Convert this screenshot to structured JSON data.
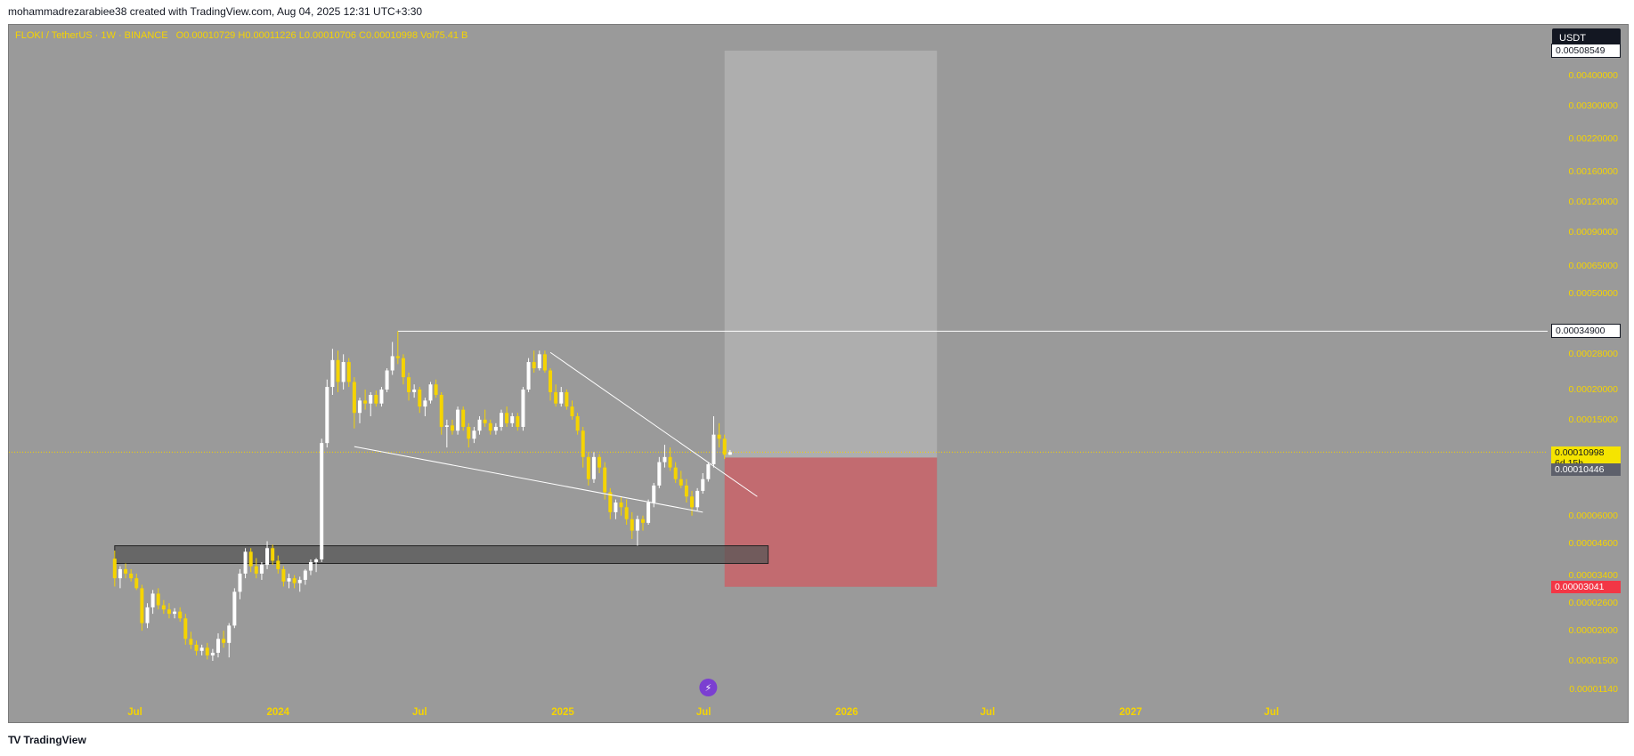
{
  "caption": "mohammadrezarabiee38 created with TradingView.com, Aug 04, 2025 12:31 UTC+3:30",
  "footer": {
    "brand": "TradingView"
  },
  "currency": "USDT",
  "legend": {
    "symbol": "FLOKI / TetherUS · 1W · BINANCE",
    "open_key": "O",
    "open": "0.00010729",
    "high_key": "H",
    "high": "0.00011226",
    "low_key": "L",
    "low": "0.00010706",
    "close_key": "C",
    "close": "0.00010998",
    "vol_key": "Vol",
    "vol": "75.41 B"
  },
  "price_labels": {
    "target": "0.00508549",
    "resistance": "0.00034900",
    "current": "0.00010998",
    "countdown": "6d 15h",
    "entry": "0.00010446",
    "stop": "0.00003041"
  },
  "colors": {
    "background": "#9a9a9a",
    "up_candle": "#ffffff",
    "down_candle": "#f5d400",
    "axis_text": "#f5d400",
    "target_zone": "#b0b0b0",
    "stop_zone": "#c4686e",
    "support_zone": "#555555",
    "stop_label": "#f23645"
  },
  "chart_data": {
    "type": "candlestick",
    "scale": "log",
    "ylim": [
      1.05e-05,
      0.0065
    ],
    "y_ticks": [
      "0.00400000",
      "0.00300000",
      "0.00220000",
      "0.00160000",
      "0.00120000",
      "0.00090000",
      "0.00065000",
      "0.00050000",
      "0.00028000",
      "0.00020000",
      "0.00015000",
      "0.00006000",
      "0.00004600",
      "0.00003400",
      "0.00002600",
      "0.00002000",
      "0.00001500",
      "0.00001140"
    ],
    "x_ticks": [
      "Jul",
      "2024",
      "Jul",
      "2025",
      "Jul",
      "2026",
      "Jul",
      "2027",
      "Jul"
    ],
    "x_tick_dates": [
      "2023-07-01",
      "2024-01-01",
      "2024-07-01",
      "2025-01-01",
      "2025-07-01",
      "2026-01-01",
      "2026-07-01",
      "2027-01-01",
      "2027-07-01"
    ],
    "xlim": [
      "2023-01-20",
      "2028-06-20"
    ],
    "candles": [
      [
        "2023-06-05",
        3.98e-05,
        4.3e-05,
        3.05e-05,
        3.3e-05
      ],
      [
        "2023-06-12",
        3.3e-05,
        3.7e-05,
        3e-05,
        3.6e-05
      ],
      [
        "2023-06-19",
        3.6e-05,
        3.8e-05,
        3.3e-05,
        3.45e-05
      ],
      [
        "2023-06-26",
        3.45e-05,
        3.6e-05,
        3.2e-05,
        3.3e-05
      ],
      [
        "2023-07-03",
        3.3e-05,
        3.45e-05,
        2.95e-05,
        3e-05
      ],
      [
        "2023-07-10",
        3e-05,
        3.1e-05,
        2e-05,
        2.15e-05
      ],
      [
        "2023-07-17",
        2.15e-05,
        2.6e-05,
        2.05e-05,
        2.5e-05
      ],
      [
        "2023-07-24",
        2.5e-05,
        2.95e-05,
        2.35e-05,
        2.85e-05
      ],
      [
        "2023-07-31",
        2.85e-05,
        3e-05,
        2.45e-05,
        2.55e-05
      ],
      [
        "2023-08-07",
        2.55e-05,
        2.68e-05,
        2.35e-05,
        2.45e-05
      ],
      [
        "2023-08-14",
        2.45e-05,
        2.6e-05,
        2.25e-05,
        2.35e-05
      ],
      [
        "2023-08-21",
        2.35e-05,
        2.48e-05,
        2.25e-05,
        2.4e-05
      ],
      [
        "2023-08-28",
        2.4e-05,
        2.5e-05,
        2.18e-05,
        2.25e-05
      ],
      [
        "2023-09-04",
        2.25e-05,
        2.35e-05,
        1.75e-05,
        1.85e-05
      ],
      [
        "2023-09-11",
        1.85e-05,
        1.98e-05,
        1.68e-05,
        1.75e-05
      ],
      [
        "2023-09-18",
        1.75e-05,
        1.82e-05,
        1.58e-05,
        1.65e-05
      ],
      [
        "2023-09-25",
        1.65e-05,
        1.75e-05,
        1.58e-05,
        1.7e-05
      ],
      [
        "2023-10-02",
        1.7e-05,
        1.78e-05,
        1.52e-05,
        1.58e-05
      ],
      [
        "2023-10-09",
        1.58e-05,
        1.68e-05,
        1.5e-05,
        1.62e-05
      ],
      [
        "2023-10-16",
        1.62e-05,
        1.95e-05,
        1.55e-05,
        1.85e-05
      ],
      [
        "2023-10-23",
        1.85e-05,
        2e-05,
        1.7e-05,
        1.78e-05
      ],
      [
        "2023-10-30",
        1.78e-05,
        2.15e-05,
        1.55e-05,
        2.1e-05
      ],
      [
        "2023-11-06",
        2.1e-05,
        3e-05,
        2.05e-05,
        2.9e-05
      ],
      [
        "2023-11-13",
        2.9e-05,
        3.6e-05,
        2.7e-05,
        3.45e-05
      ],
      [
        "2023-11-20",
        3.45e-05,
        4.4e-05,
        3.3e-05,
        4.25e-05
      ],
      [
        "2023-11-27",
        4.25e-05,
        4.4e-05,
        3.5e-05,
        3.7e-05
      ],
      [
        "2023-12-04",
        3.7e-05,
        4e-05,
        3.3e-05,
        3.45e-05
      ],
      [
        "2023-12-11",
        3.45e-05,
        3.85e-05,
        3.25e-05,
        3.75e-05
      ],
      [
        "2023-12-18",
        3.75e-05,
        4.7e-05,
        3.6e-05,
        4.4e-05
      ],
      [
        "2023-12-25",
        4.4e-05,
        4.55e-05,
        3.75e-05,
        3.9e-05
      ],
      [
        "2024-01-01",
        3.9e-05,
        4.1e-05,
        3.45e-05,
        3.6e-05
      ],
      [
        "2024-01-08",
        3.6e-05,
        3.7e-05,
        3.05e-05,
        3.2e-05
      ],
      [
        "2024-01-15",
        3.2e-05,
        3.45e-05,
        3e-05,
        3.3e-05
      ],
      [
        "2024-01-22",
        3.3e-05,
        3.4e-05,
        3e-05,
        3.15e-05
      ],
      [
        "2024-01-29",
        3.15e-05,
        3.35e-05,
        2.9e-05,
        3.25e-05
      ],
      [
        "2024-02-05",
        3.25e-05,
        3.6e-05,
        3.1e-05,
        3.55e-05
      ],
      [
        "2024-02-12",
        3.55e-05,
        3.95e-05,
        3.4e-05,
        3.85e-05
      ],
      [
        "2024-02-19",
        3.85e-05,
        4e-05,
        3.5e-05,
        3.95e-05
      ],
      [
        "2024-02-26",
        3.95e-05,
        0.000125,
        3.85e-05,
        0.00012
      ],
      [
        "2024-03-04",
        0.00012,
        0.00022,
        0.000115,
        0.000205
      ],
      [
        "2024-03-11",
        0.000205,
        0.000295,
        0.00019,
        0.000265
      ],
      [
        "2024-03-18",
        0.000265,
        0.00029,
        0.000195,
        0.000215
      ],
      [
        "2024-03-25",
        0.000215,
        0.00028,
        0.0002,
        0.00026
      ],
      [
        "2024-04-01",
        0.00026,
        0.00027,
        0.000205,
        0.000215
      ],
      [
        "2024-04-08",
        0.000215,
        0.000225,
        0.000138,
        0.00016
      ],
      [
        "2024-04-15",
        0.00016,
        0.000185,
        0.000145,
        0.00018
      ],
      [
        "2024-04-22",
        0.00018,
        0.0002,
        0.000165,
        0.000175
      ],
      [
        "2024-04-29",
        0.000175,
        0.000195,
        0.000155,
        0.00019
      ],
      [
        "2024-05-06",
        0.00019,
        0.000198,
        0.00017,
        0.000175
      ],
      [
        "2024-05-13",
        0.000175,
        0.000205,
        0.00017,
        0.0002
      ],
      [
        "2024-05-20",
        0.0002,
        0.000245,
        0.000195,
        0.00024
      ],
      [
        "2024-05-27",
        0.00024,
        0.000315,
        0.00023,
        0.000275
      ],
      [
        "2024-06-03",
        0.000275,
        0.000349,
        0.000255,
        0.00027
      ],
      [
        "2024-06-10",
        0.00027,
        0.00028,
        0.00021,
        0.000225
      ],
      [
        "2024-06-17",
        0.000225,
        0.000235,
        0.00018,
        0.000195
      ],
      [
        "2024-06-24",
        0.000195,
        0.00021,
        0.000185,
        0.0002
      ],
      [
        "2024-07-01",
        0.0002,
        0.000205,
        0.00016,
        0.00017
      ],
      [
        "2024-07-08",
        0.00017,
        0.000185,
        0.000155,
        0.00018
      ],
      [
        "2024-07-15",
        0.00018,
        0.000215,
        0.000175,
        0.00021
      ],
      [
        "2024-07-22",
        0.00021,
        0.00022,
        0.000185,
        0.00019
      ],
      [
        "2024-07-29",
        0.00019,
        0.000195,
        0.00013,
        0.00014
      ],
      [
        "2024-08-05",
        0.00014,
        0.00015,
        0.000115,
        0.000142
      ],
      [
        "2024-08-12",
        0.000142,
        0.00015,
        0.00013,
        0.000135
      ],
      [
        "2024-08-19",
        0.000135,
        0.00017,
        0.00013,
        0.000165
      ],
      [
        "2024-08-26",
        0.000165,
        0.00017,
        0.000135,
        0.00014
      ],
      [
        "2024-09-02",
        0.00014,
        0.000145,
        0.000115,
        0.000125
      ],
      [
        "2024-09-09",
        0.000125,
        0.00014,
        0.00012,
        0.000135
      ],
      [
        "2024-09-16",
        0.000135,
        0.000155,
        0.00013,
        0.00015
      ],
      [
        "2024-09-23",
        0.00015,
        0.000165,
        0.00014,
        0.000145
      ],
      [
        "2024-09-30",
        0.000145,
        0.00015,
        0.00013,
        0.000135
      ],
      [
        "2024-10-07",
        0.000135,
        0.000145,
        0.00013,
        0.00014
      ],
      [
        "2024-10-14",
        0.00014,
        0.000165,
        0.000135,
        0.00016
      ],
      [
        "2024-10-21",
        0.00016,
        0.00017,
        0.00014,
        0.000145
      ],
      [
        "2024-10-28",
        0.000145,
        0.00016,
        0.00014,
        0.000155
      ],
      [
        "2024-11-04",
        0.000155,
        0.00016,
        0.000135,
        0.00014
      ],
      [
        "2024-11-11",
        0.00014,
        0.000205,
        0.000135,
        0.0002
      ],
      [
        "2024-11-18",
        0.0002,
        0.00027,
        0.000195,
        0.00026
      ],
      [
        "2024-11-25",
        0.00026,
        0.00029,
        0.000235,
        0.000245
      ],
      [
        "2024-12-02",
        0.000245,
        0.00029,
        0.00024,
        0.00028
      ],
      [
        "2024-12-09",
        0.00028,
        0.00029,
        0.000235,
        0.00024
      ],
      [
        "2024-12-16",
        0.00024,
        0.000245,
        0.00018,
        0.000195
      ],
      [
        "2024-12-23",
        0.000195,
        0.00021,
        0.00017,
        0.000175
      ],
      [
        "2024-12-30",
        0.000175,
        0.000205,
        0.00017,
        0.000195
      ],
      [
        "2025-01-06",
        0.000195,
        0.0002,
        0.000165,
        0.00017
      ],
      [
        "2025-01-13",
        0.00017,
        0.00018,
        0.00015,
        0.000155
      ],
      [
        "2025-01-20",
        0.000155,
        0.00016,
        0.00013,
        0.000135
      ],
      [
        "2025-01-27",
        0.000135,
        0.00014,
        9.5e-05,
        0.000105
      ],
      [
        "2025-02-03",
        0.000105,
        0.00011,
        8e-05,
        8.5e-05
      ],
      [
        "2025-02-10",
        8.5e-05,
        0.00011,
        8.2e-05,
        0.000105
      ],
      [
        "2025-02-17",
        0.000105,
        0.000108,
        9e-05,
        9.5e-05
      ],
      [
        "2025-02-24",
        9.5e-05,
        0.0001,
        7e-05,
        7.5e-05
      ],
      [
        "2025-03-03",
        7.5e-05,
        7.8e-05,
        5.8e-05,
        6.2e-05
      ],
      [
        "2025-03-10",
        6.2e-05,
        7e-05,
        5.8e-05,
        6.8e-05
      ],
      [
        "2025-03-17",
        6.8e-05,
        7.2e-05,
        6e-05,
        6.5e-05
      ],
      [
        "2025-03-24",
        6.5e-05,
        7e-05,
        5.5e-05,
        5.8e-05
      ],
      [
        "2025-03-31",
        5.8e-05,
        6.2e-05,
        4.8e-05,
        5.2e-05
      ],
      [
        "2025-04-07",
        5.2e-05,
        6e-05,
        4.5e-05,
        5.8e-05
      ],
      [
        "2025-04-14",
        5.8e-05,
        6e-05,
        5.2e-05,
        5.6e-05
      ],
      [
        "2025-04-21",
        5.6e-05,
        7e-05,
        5.5e-05,
        6.8e-05
      ],
      [
        "2025-04-28",
        6.8e-05,
        8.2e-05,
        6.5e-05,
        8e-05
      ],
      [
        "2025-05-05",
        8e-05,
        0.000105,
        7.8e-05,
        0.0001
      ],
      [
        "2025-05-12",
        0.0001,
        0.000118,
        9.5e-05,
        0.000105
      ],
      [
        "2025-05-19",
        0.000105,
        0.000115,
        9.2e-05,
        9.5e-05
      ],
      [
        "2025-05-26",
        9.5e-05,
        0.0001,
        8.2e-05,
        8.5e-05
      ],
      [
        "2025-06-02",
        8.5e-05,
        9.2e-05,
        7.8e-05,
        8e-05
      ],
      [
        "2025-06-09",
        8e-05,
        8.5e-05,
        6.8e-05,
        7.2e-05
      ],
      [
        "2025-06-16",
        7.2e-05,
        7.6e-05,
        6e-05,
        6.5e-05
      ],
      [
        "2025-06-23",
        6.5e-05,
        7.8e-05,
        6.3e-05,
        7.6e-05
      ],
      [
        "2025-06-30",
        7.6e-05,
        9e-05,
        7.4e-05,
        8.5e-05
      ],
      [
        "2025-07-07",
        8.5e-05,
        0.0001,
        8.3e-05,
        9.8e-05
      ],
      [
        "2025-07-14",
        9.8e-05,
        0.000155,
        9.5e-05,
        0.00013
      ],
      [
        "2025-07-21",
        0.00013,
        0.000145,
        0.000115,
        0.000125
      ],
      [
        "2025-07-28",
        0.000125,
        0.00013,
        0.000103,
        0.0001073
      ],
      [
        "2025-08-04",
        0.0001073,
        0.0001123,
        0.0001071,
        0.00011
      ]
    ],
    "resistance_line": {
      "price": 0.000349,
      "from": "2024-06-03"
    },
    "current_price_line": 0.00010998,
    "support_zone": {
      "from": "2023-06-05",
      "to": "2025-09-22",
      "top": 4.5e-05,
      "bottom": 3.8e-05
    },
    "target_zone": {
      "from": "2025-07-28",
      "to": "2026-04-27",
      "top": 0.00508549,
      "bottom": 0.00010446
    },
    "stop_zone": {
      "from": "2025-07-28",
      "to": "2026-04-27",
      "top": 0.00010446,
      "bottom": 3.041e-05
    },
    "trendlines": [
      {
        "from": [
          "2024-04-08",
          0.000116
        ],
        "to": [
          "2025-06-30",
          6.2e-05
        ]
      },
      {
        "from": [
          "2024-12-16",
          0.000285
        ],
        "to": [
          "2025-09-08",
          7.2e-05
        ]
      }
    ]
  }
}
